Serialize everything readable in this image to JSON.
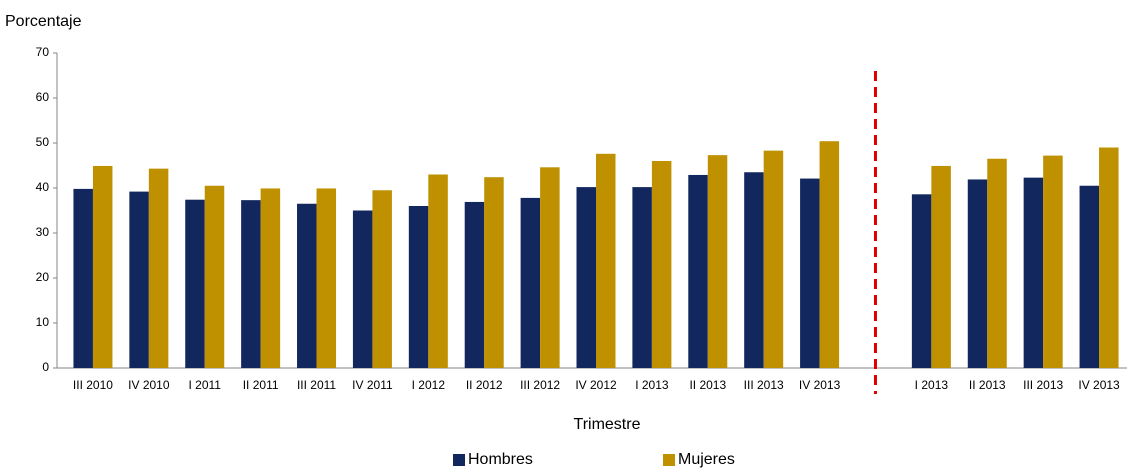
{
  "chart_data": {
    "type": "bar",
    "y_label": "Porcentaje",
    "x_label": "Trimestre",
    "categories": [
      "III 2010",
      "IV 2010",
      "I 2011",
      "II 2011",
      "III 2011",
      "IV 2011",
      "I 2012",
      "II 2012",
      "III 2012",
      "IV 2012",
      "I 2013",
      "II 2013",
      "III 2013",
      "IV 2013",
      null,
      "I 2013",
      "II 2013",
      "III 2013",
      "IV 2013"
    ],
    "series": [
      {
        "name": "Hombres",
        "color": "#13275f",
        "values": [
          39.8,
          39.2,
          37.4,
          37.3,
          36.5,
          35.0,
          36.0,
          36.9,
          37.8,
          40.2,
          40.2,
          42.9,
          43.5,
          42.1,
          null,
          38.6,
          41.9,
          42.3,
          40.5
        ]
      },
      {
        "name": "Mujeres",
        "color": "#bf9000",
        "values": [
          44.9,
          44.3,
          40.5,
          39.9,
          39.9,
          39.5,
          43.0,
          42.4,
          44.6,
          47.6,
          46.0,
          47.3,
          48.3,
          50.4,
          null,
          44.9,
          46.5,
          47.2,
          49.0
        ]
      }
    ],
    "ylim": [
      0,
      70
    ],
    "yticks": [
      0,
      10,
      20,
      30,
      40,
      50,
      60,
      70
    ],
    "grid": false
  }
}
